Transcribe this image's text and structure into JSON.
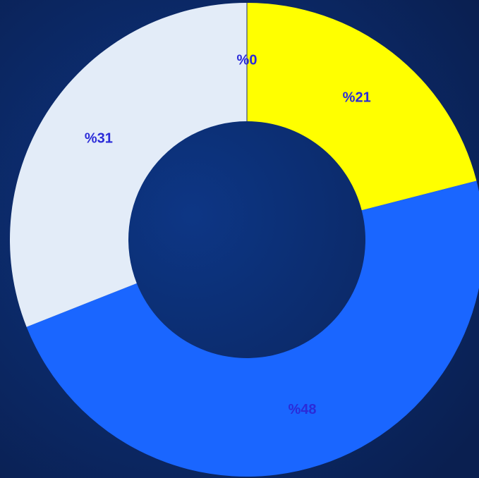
{
  "chart_data": {
    "type": "donut",
    "values": [
      21,
      48,
      31,
      0
    ],
    "value_labels": [
      "%21",
      "%48",
      "%31",
      "%0"
    ],
    "colors": [
      "#ffff00",
      "#1a66ff",
      "#e3ecf8",
      "#1a2a70"
    ]
  }
}
